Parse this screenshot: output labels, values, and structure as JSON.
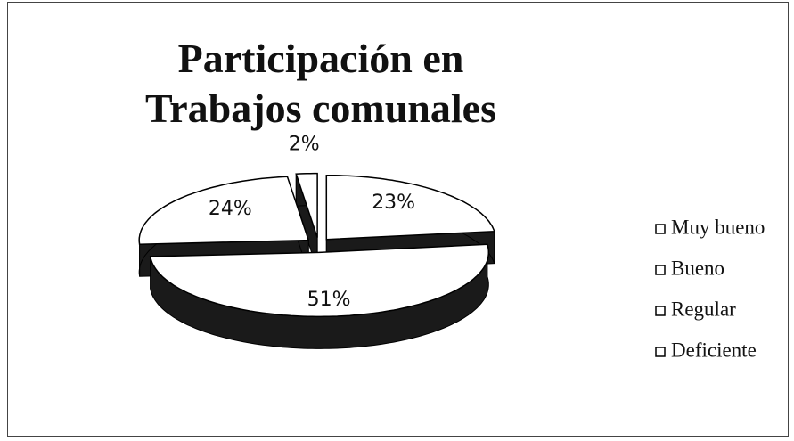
{
  "chart_data": {
    "type": "pie",
    "title": "Participación en Trabajos comunales",
    "categories": [
      "Muy bueno",
      "Bueno",
      "Regular",
      "Deficiente"
    ],
    "values": [
      23,
      51,
      24,
      2
    ],
    "value_labels": [
      "23%",
      "51%",
      "24%",
      "2%"
    ],
    "colors": [
      "#ffffff",
      "#ffffff",
      "#ffffff",
      "#ffffff"
    ],
    "legend": "right"
  }
}
